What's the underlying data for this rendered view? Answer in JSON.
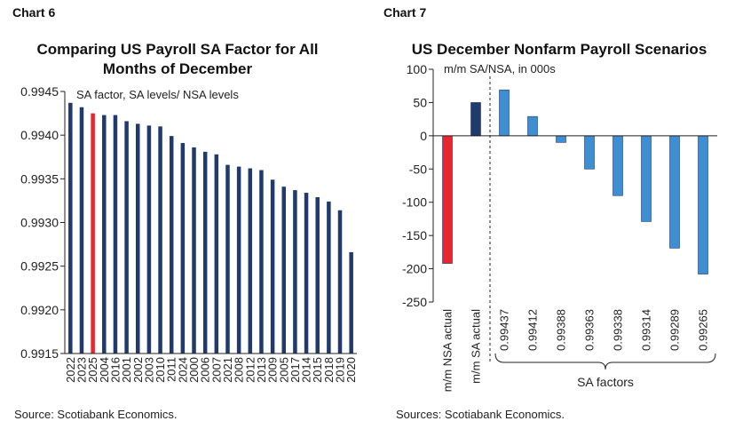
{
  "chart_data": [
    {
      "type": "bar",
      "chart_label": "Chart 6",
      "title": "Comparing US Payroll SA Factor for All Months of December",
      "annotation": "SA factor, SA levels/ NSA levels",
      "source": "Source: Scotiabank Economics.",
      "ylim": [
        0.9915,
        0.9945
      ],
      "yticks": [
        "0.9945",
        "0.9940",
        "0.9935",
        "0.9930",
        "0.9925",
        "0.9920",
        "0.9915"
      ],
      "categories": [
        "2022",
        "2023",
        "2025",
        "2004",
        "2016",
        "2001",
        "2002",
        "2003",
        "2010",
        "2011",
        "2024",
        "2000",
        "2006",
        "2007",
        "2021",
        "2008",
        "2012",
        "2013",
        "2009",
        "2005",
        "2017",
        "2014",
        "2015",
        "2018",
        "2019",
        "2020"
      ],
      "values": [
        0.99437,
        0.99432,
        0.99425,
        0.99423,
        0.99423,
        0.99416,
        0.99413,
        0.99411,
        0.9941,
        0.99399,
        0.99391,
        0.99386,
        0.99381,
        0.99378,
        0.99366,
        0.99364,
        0.99362,
        0.9936,
        0.99349,
        0.99341,
        0.99337,
        0.99334,
        0.99329,
        0.99324,
        0.99314,
        0.99266
      ],
      "highlight_category": "2025",
      "colors": {
        "bar": "#1f3a6b",
        "highlight": "#e8262f"
      }
    },
    {
      "type": "bar",
      "chart_label": "Chart 7",
      "title": "US December Nonfarm Payroll Scenarios",
      "annotation": "m/m SA/NSA, in 000s",
      "source": "Sources: Scotiabank Economics.",
      "ylim": [
        -250,
        100
      ],
      "yticks": [
        "100",
        "50",
        "0",
        "-50",
        "-100",
        "-150",
        "-200",
        "-250"
      ],
      "categories": [
        "m/m NSA actual",
        "m/m SA actual",
        "0.99437",
        "0.99412",
        "0.99388",
        "0.99363",
        "0.99338",
        "0.99314",
        "0.99289",
        "0.99265"
      ],
      "values": [
        -192,
        50,
        69,
        29,
        -10,
        -50,
        -90,
        -129,
        -169,
        -208
      ],
      "group_label": "SA factors",
      "colors": {
        "nsa_actual": "#e8262f",
        "sa_actual": "#1f3a6b",
        "sa_factor": "#3d8fd1"
      }
    }
  ]
}
